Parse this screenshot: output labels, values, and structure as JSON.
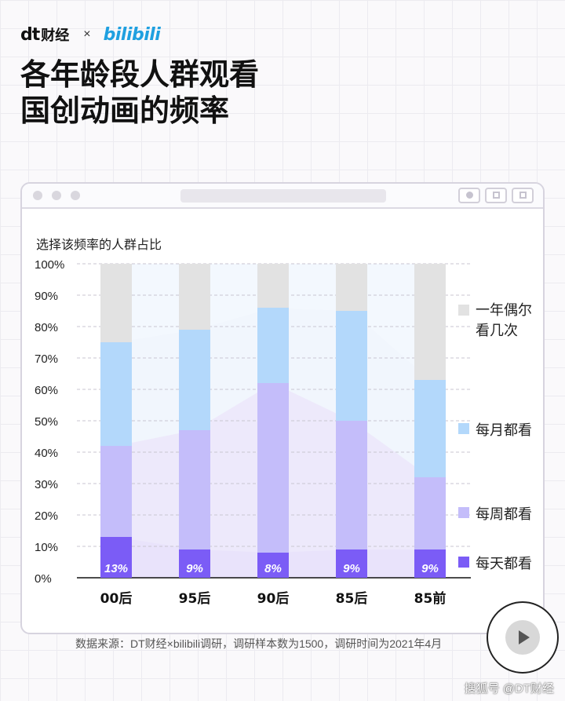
{
  "header": {
    "logo_dt": "dt",
    "logo_cn": "财经",
    "separator": "×",
    "partner_logo": "bilibili",
    "title_line1": "各年龄段人群观看",
    "title_line2": "国创动画的频率"
  },
  "window": {
    "buttons": [
      "record-icon",
      "share-icon",
      "copy-icon"
    ]
  },
  "chart_data": {
    "type": "bar",
    "stacked": true,
    "title": "",
    "ylabel": "选择该频率的人群占比",
    "xlabel": "",
    "ylim": [
      0,
      100
    ],
    "yticks": [
      "0%",
      "10%",
      "20%",
      "30%",
      "40%",
      "50%",
      "60%",
      "70%",
      "80%",
      "90%",
      "100%"
    ],
    "categories": [
      "00后",
      "95后",
      "90后",
      "85后",
      "85前"
    ],
    "series": [
      {
        "name": "每天都看",
        "color": "#7b5cf6",
        "values": [
          13,
          9,
          8,
          9,
          9
        ],
        "labels": [
          "13%",
          "9%",
          "8%",
          "9%",
          "9%"
        ]
      },
      {
        "name": "每周都看",
        "color": "#c4bdfa",
        "values": [
          29,
          38,
          54,
          41,
          23
        ]
      },
      {
        "name": "每月都看",
        "color": "#b3d8fb",
        "values": [
          33,
          32,
          24,
          35,
          31
        ]
      },
      {
        "name": "一年偶尔看几次",
        "color": "#e2e2e2",
        "values": [
          25,
          21,
          14,
          15,
          37
        ]
      }
    ],
    "legend_position": "right",
    "grid": true
  },
  "footer": {
    "source": "数据来源：DT财经×bilibili调研，调研样本数为1500，调研时间为2021年4月",
    "credit": "搜狐号 @DT财经"
  }
}
